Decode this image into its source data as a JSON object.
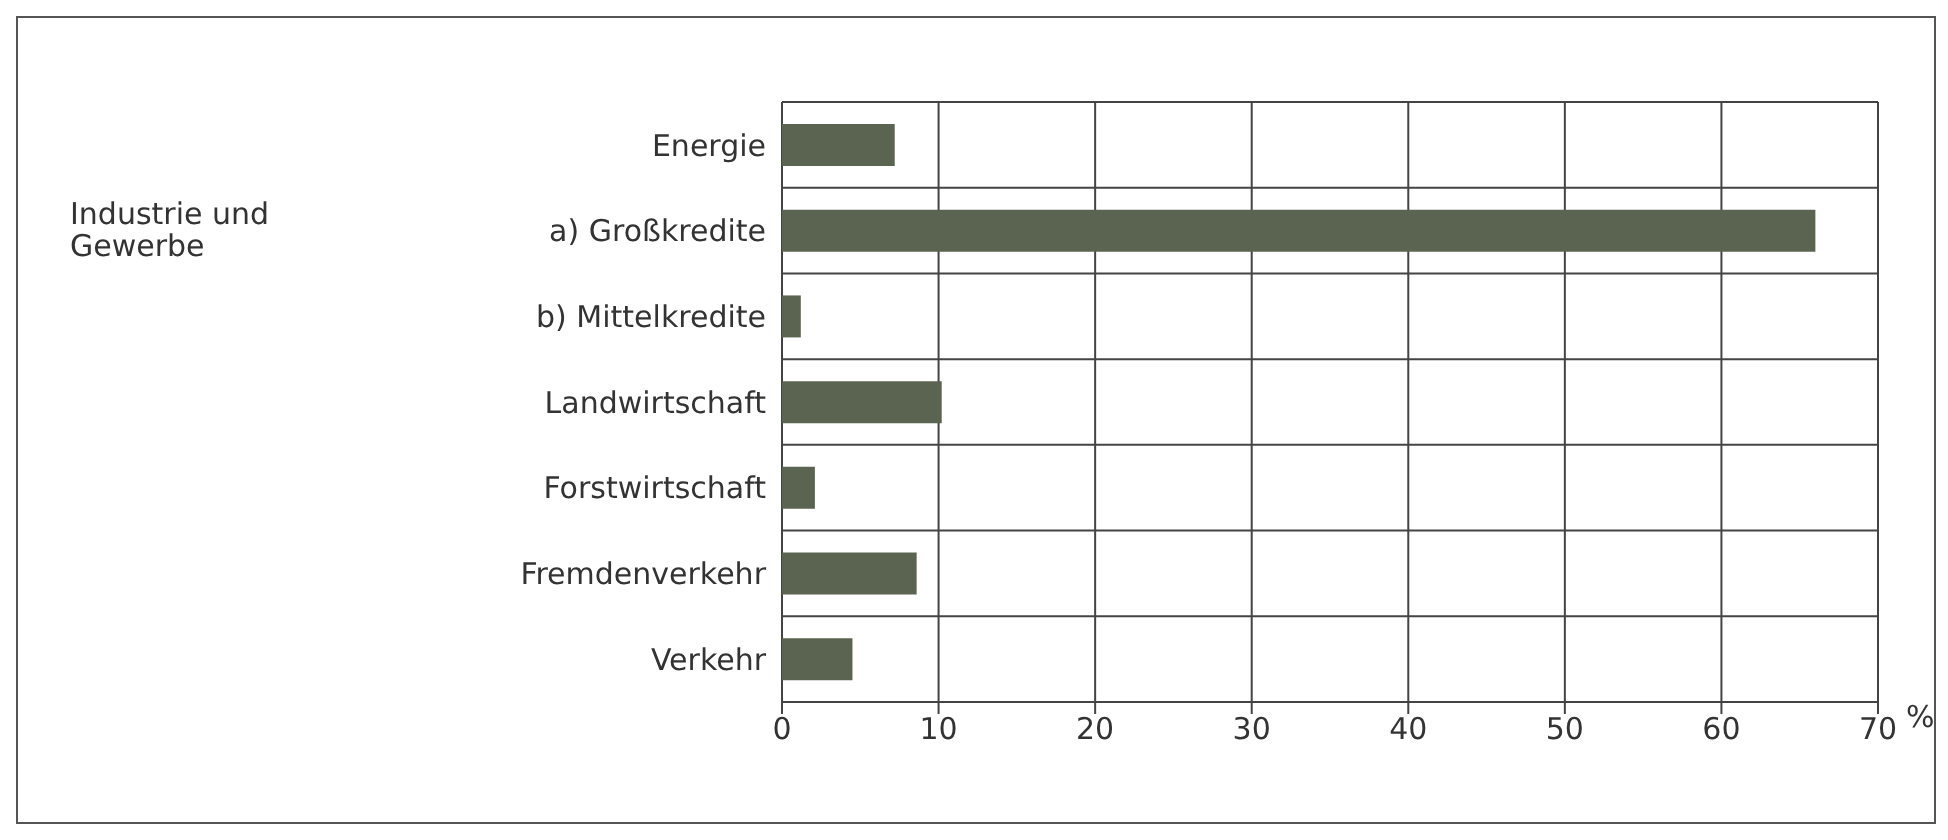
{
  "chart_data": {
    "type": "bar",
    "orientation": "horizontal",
    "categories": [
      "Energie",
      "a)   Großkredite",
      "b)   Mittelkredite",
      "Landwirtschaft",
      "Forstwirtschaft",
      "Fremdenverkehr",
      "Verkehr"
    ],
    "values": [
      7.2,
      66.0,
      1.2,
      10.2,
      2.1,
      8.6,
      4.5
    ],
    "color": "#5b6351",
    "xlim": [
      0,
      70
    ],
    "xticks": [
      0,
      10,
      20,
      30,
      40,
      50,
      60,
      70
    ],
    "xlabel": "%",
    "annotations": [
      "Industrie und Gewerbe"
    ],
    "grid": true
  }
}
